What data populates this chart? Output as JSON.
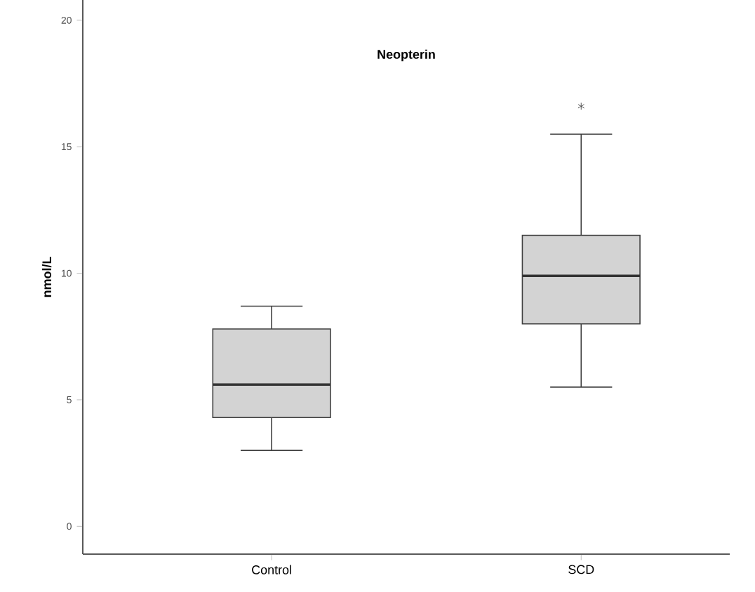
{
  "chart_data": {
    "type": "box",
    "title": "Neopterin",
    "ylabel": "nmol/L",
    "categories": [
      "Control",
      "SCD"
    ],
    "boxes": [
      {
        "low": 3.0,
        "q1": 4.3,
        "median": 5.6,
        "q3": 7.8,
        "high": 8.7
      },
      {
        "low": 5.5,
        "q1": 8.0,
        "median": 9.9,
        "q3": 11.5,
        "high": 15.5,
        "outliers": [
          16.6
        ]
      }
    ],
    "color": "#d3d3d3",
    "marker": "star",
    "ylim": [
      -1.1,
      20.8
    ],
    "yticks": [
      0,
      5,
      10,
      15,
      20
    ],
    "grid": false
  }
}
